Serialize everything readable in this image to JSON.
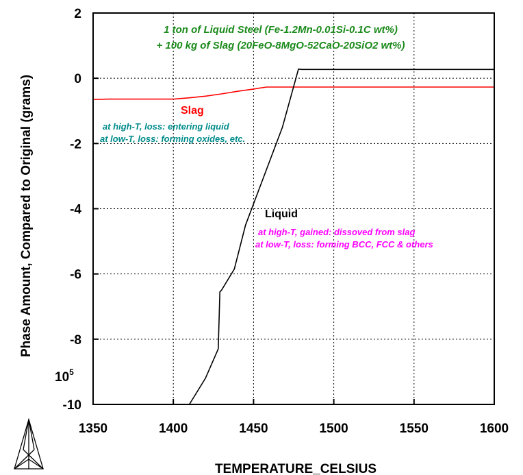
{
  "chart_data": {
    "type": "line",
    "xlabel": "TEMPERATURE_CELSIUS",
    "ylabel": "Phase Amount, Compared to Original (grams)",
    "y_multiplier": "10",
    "y_multiplier_exp": "5",
    "xlim": [
      1350,
      1600
    ],
    "ylim": [
      -10,
      2
    ],
    "x_ticks": [
      {
        "value": 1350,
        "label": "1350"
      },
      {
        "value": 1400,
        "label": "1400"
      },
      {
        "value": 1450,
        "label": "1450"
      },
      {
        "value": 1500,
        "label": "1500"
      },
      {
        "value": 1550,
        "label": "1550"
      },
      {
        "value": 1600,
        "label": "1600"
      }
    ],
    "y_ticks": [
      {
        "value": 2,
        "label": "2"
      },
      {
        "value": 0,
        "label": "0"
      },
      {
        "value": -2,
        "label": "-2"
      },
      {
        "value": -4,
        "label": "-4"
      },
      {
        "value": -6,
        "label": "-6"
      },
      {
        "value": -8,
        "label": "-8"
      },
      {
        "value": -10,
        "label": "-10"
      }
    ],
    "grid": true,
    "series": [
      {
        "name": "Slag",
        "color": "#ff0000",
        "points": [
          [
            1350,
            -0.65
          ],
          [
            1360,
            -0.64
          ],
          [
            1380,
            -0.64
          ],
          [
            1400,
            -0.64
          ],
          [
            1410,
            -0.6
          ],
          [
            1420,
            -0.55
          ],
          [
            1430,
            -0.48
          ],
          [
            1440,
            -0.4
          ],
          [
            1450,
            -0.33
          ],
          [
            1458,
            -0.27
          ],
          [
            1470,
            -0.27
          ],
          [
            1500,
            -0.27
          ],
          [
            1550,
            -0.27
          ],
          [
            1600,
            -0.27
          ]
        ]
      },
      {
        "name": "Liquid",
        "color": "#000000",
        "points": [
          [
            1410,
            -10
          ],
          [
            1420,
            -9.2
          ],
          [
            1428,
            -8.3
          ],
          [
            1429,
            -6.55
          ],
          [
            1430,
            -6.5
          ],
          [
            1438,
            -5.85
          ],
          [
            1445,
            -4.5
          ],
          [
            1455,
            -3.2
          ],
          [
            1468,
            -1.5
          ],
          [
            1478,
            0.28
          ],
          [
            1480,
            0.27
          ],
          [
            1600,
            0.27
          ]
        ]
      }
    ],
    "annotations": [
      {
        "id": "title1",
        "text": "1 ton of Liquid Steel (Fe-1.2Mn-0.01Si-0.1C wt%)",
        "color": "#1a8a1a"
      },
      {
        "id": "title2",
        "text": "+ 100 kg of Slag (20FeO-8MgO-52CaO-20SiO2 wt%)",
        "color": "#1a8a1a"
      },
      {
        "id": "slag_label",
        "text": "Slag",
        "color": "#ff0000"
      },
      {
        "id": "slag_note1",
        "text": "at high-T, loss: entering liquid",
        "color": "#008b8b"
      },
      {
        "id": "slag_note2",
        "text": "at low-T, loss: forming oxides, etc.",
        "color": "#008b8b"
      },
      {
        "id": "liquid_label",
        "text": "Liquid",
        "color": "#000000"
      },
      {
        "id": "liquid_note1",
        "text": "at high-T, gained: dissoved from slag",
        "color": "#ff00ff"
      },
      {
        "id": "liquid_note2",
        "text": "at low-T, loss: forming BCC, FCC & others",
        "color": "#ff00ff"
      }
    ]
  },
  "logo": {
    "name": "thermo-calc-logo-icon"
  }
}
